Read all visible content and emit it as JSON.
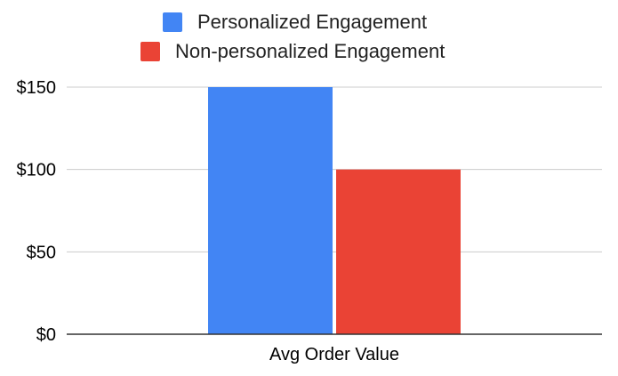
{
  "chart_data": {
    "type": "bar",
    "categories": [
      "Avg Order Value"
    ],
    "series": [
      {
        "name": "Personalized Engagement",
        "values": [
          150
        ],
        "color": "#4285F4"
      },
      {
        "name": "Non-personalized Engagement",
        "values": [
          100
        ],
        "color": "#EA4335"
      }
    ],
    "title": "",
    "xlabel": "",
    "ylabel": "",
    "ylim": [
      0,
      150
    ],
    "y_ticks": [
      0,
      50,
      100,
      150
    ],
    "y_tick_labels": [
      "$0",
      "$50",
      "$100",
      "$150"
    ],
    "grid": true,
    "legend": "top-center",
    "colors": {
      "gridline": "#cccccc",
      "axis": "#333333"
    }
  }
}
